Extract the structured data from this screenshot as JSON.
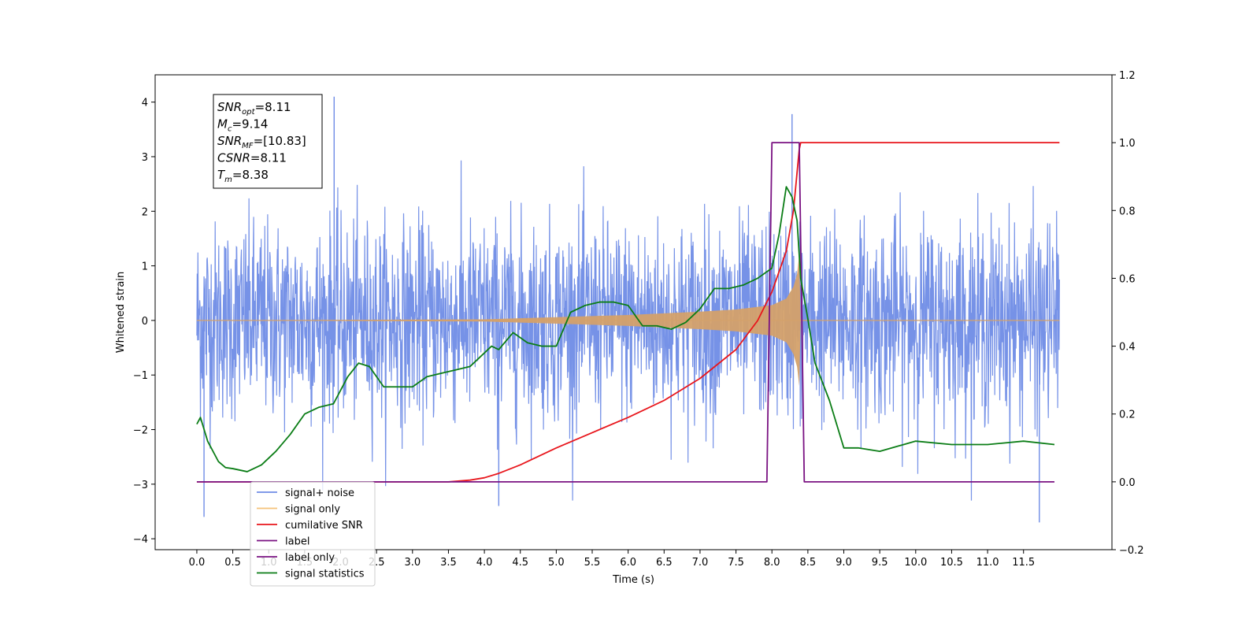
{
  "chart_data": {
    "type": "line",
    "xlabel": "Time (s)",
    "ylabel_left": "Whitened strain",
    "ylabel_right": "",
    "xlim": [
      -0.58,
      12.73
    ],
    "ylim_left": [
      -4.2,
      4.5
    ],
    "ylim_right": [
      -0.2,
      1.2
    ],
    "x_ticks": [
      0.0,
      0.5,
      1.0,
      1.5,
      2.0,
      2.5,
      3.0,
      3.5,
      4.0,
      4.5,
      5.0,
      5.5,
      6.0,
      6.5,
      7.0,
      7.5,
      8.0,
      8.5,
      9.0,
      9.5,
      10.0,
      10.5,
      11.0,
      11.5
    ],
    "x_tick_labels": [
      "0.0",
      "0.5",
      "1.0",
      "1.5",
      "2.0",
      "2.5",
      "3.0",
      "3.5",
      "4.0",
      "4.5",
      "5.0",
      "5.5",
      "6.0",
      "6.5",
      "7.0",
      "7.5",
      "8.0",
      "8.5",
      "9.0",
      "9.5",
      "10.0",
      "10.5",
      "11.0",
      "11.5"
    ],
    "y_left_ticks": [
      -4,
      -3,
      -2,
      -1,
      0,
      1,
      2,
      3,
      4
    ],
    "y_left_tick_labels": [
      "−4",
      "−3",
      "−2",
      "−1",
      "0",
      "1",
      "2",
      "3",
      "4"
    ],
    "y_right_ticks": [
      -0.2,
      0.0,
      0.2,
      0.4,
      0.6,
      0.8,
      1.0,
      1.2
    ],
    "y_right_tick_labels": [
      "−0.2",
      "0.0",
      "0.2",
      "0.4",
      "0.6",
      "0.8",
      "1.0",
      "1.2"
    ],
    "grid": false,
    "legend_position": "lower-left",
    "annotation": {
      "lines": [
        {
          "main": "SNR",
          "sub": "opt",
          "rest": "=8.11"
        },
        {
          "main": "M",
          "sub": "c",
          "rest": "=9.14"
        },
        {
          "main": "SNR",
          "sub": "MF",
          "rest": "=[10.83]"
        },
        {
          "main": "CSNR",
          "sub": "",
          "rest": "=8.11"
        },
        {
          "main": "T",
          "sub": "m",
          "rest": "=8.38"
        }
      ]
    },
    "series": [
      {
        "name": "signal+ noise",
        "axis": "left",
        "color": "#6f8ce6",
        "x_range": [
          0.0,
          12.0
        ],
        "typical_band": [
          -1.7,
          1.7
        ],
        "peak_values": [
          4.1,
          3.78,
          -3.6,
          -3.7,
          -3.4
        ]
      },
      {
        "name": "signal only",
        "axis": "left",
        "color": "#d4a16a",
        "x_range": [
          0.0,
          12.0
        ],
        "merger_time": 8.38,
        "envelope_x": [
          0.0,
          4.0,
          5.0,
          6.0,
          7.0,
          7.5,
          8.0,
          8.2,
          8.3,
          8.35,
          8.38,
          8.4,
          12.0
        ],
        "envelope_y": [
          0.0,
          0.02,
          0.06,
          0.1,
          0.16,
          0.2,
          0.28,
          0.4,
          0.62,
          0.85,
          1.2,
          0.0,
          0.0
        ]
      },
      {
        "name": "cumilative SNR",
        "axis": "right",
        "color": "#e8161c",
        "x": [
          0.0,
          3.0,
          3.5,
          3.8,
          4.0,
          4.2,
          4.5,
          5.0,
          5.5,
          6.0,
          6.5,
          7.0,
          7.5,
          7.8,
          8.0,
          8.2,
          8.3,
          8.38,
          8.4,
          12.0
        ],
        "y": [
          0.0,
          0.0,
          0.0,
          0.005,
          0.012,
          0.025,
          0.05,
          0.1,
          0.145,
          0.19,
          0.24,
          0.305,
          0.39,
          0.475,
          0.56,
          0.68,
          0.8,
          0.98,
          1.0,
          1.0
        ]
      },
      {
        "name": "label",
        "axis": "right",
        "color": "#7a1282",
        "x": [
          0.0,
          7.93,
          8.0,
          8.38,
          8.45,
          11.93
        ],
        "y": [
          0.0,
          0.0,
          1.0,
          1.0,
          0.0,
          0.0
        ]
      },
      {
        "name": "label only",
        "axis": "right",
        "color": "#7a1282",
        "x": [],
        "y": []
      },
      {
        "name": "signal statistics",
        "axis": "right",
        "color": "#0b7d16",
        "x": [
          0.0,
          0.05,
          0.15,
          0.3,
          0.4,
          0.5,
          0.7,
          0.9,
          1.1,
          1.3,
          1.5,
          1.7,
          1.9,
          2.1,
          2.25,
          2.4,
          2.6,
          2.8,
          3.0,
          3.2,
          3.4,
          3.6,
          3.8,
          4.0,
          4.1,
          4.2,
          4.4,
          4.6,
          4.8,
          5.0,
          5.2,
          5.4,
          5.6,
          5.8,
          6.0,
          6.2,
          6.4,
          6.6,
          6.8,
          7.0,
          7.2,
          7.4,
          7.6,
          7.8,
          8.0,
          8.1,
          8.2,
          8.28,
          8.35,
          8.4,
          8.5,
          8.6,
          8.8,
          9.0,
          9.2,
          9.5,
          10.0,
          10.5,
          11.0,
          11.5,
          11.93
        ],
        "y": [
          0.17,
          0.19,
          0.12,
          0.06,
          0.042,
          0.039,
          0.03,
          0.05,
          0.09,
          0.14,
          0.2,
          0.22,
          0.23,
          0.31,
          0.35,
          0.34,
          0.28,
          0.28,
          0.28,
          0.31,
          0.32,
          0.33,
          0.34,
          0.38,
          0.4,
          0.39,
          0.44,
          0.41,
          0.4,
          0.4,
          0.5,
          0.52,
          0.53,
          0.53,
          0.52,
          0.46,
          0.46,
          0.45,
          0.47,
          0.51,
          0.57,
          0.57,
          0.58,
          0.6,
          0.63,
          0.73,
          0.87,
          0.84,
          0.77,
          0.6,
          0.48,
          0.35,
          0.24,
          0.1,
          0.1,
          0.09,
          0.12,
          0.11,
          0.11,
          0.12,
          0.11
        ]
      }
    ],
    "legend": [
      {
        "label": "signal+ noise",
        "color": "#6f8ce6"
      },
      {
        "label": "signal only",
        "color": "#f5c27a"
      },
      {
        "label": "cumilative SNR",
        "color": "#e8161c"
      },
      {
        "label": "label",
        "color": "#7a1282"
      },
      {
        "label": "label only",
        "color": "#7a1282"
      },
      {
        "label": "signal statistics",
        "color": "#0b7d16"
      }
    ]
  }
}
